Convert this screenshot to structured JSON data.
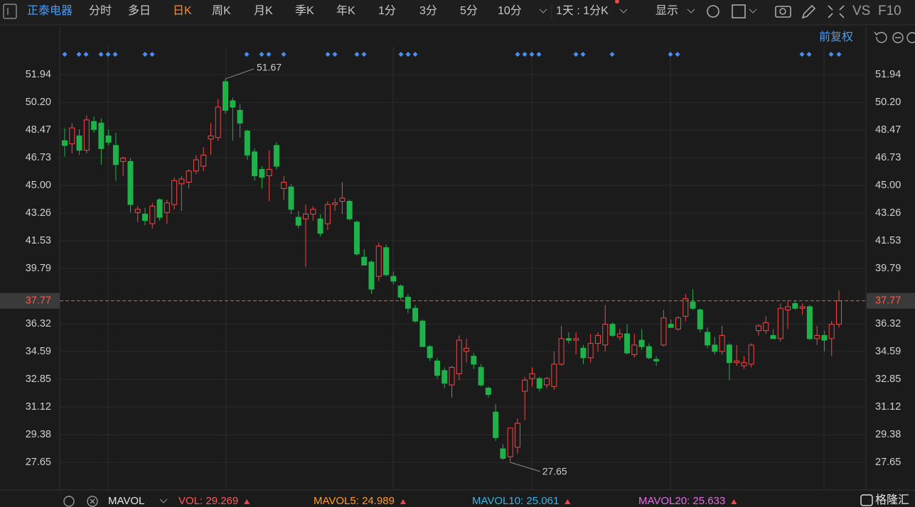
{
  "toolbar": {
    "stock": "正泰电器",
    "periods": [
      "分时",
      "多日",
      "日K",
      "周K",
      "月K",
      "季K",
      "年K",
      "1分",
      "3分",
      "5分",
      "10分"
    ],
    "period_select": "1天 : 1分K",
    "display": "显示",
    "vs": "VS",
    "f10": "F10",
    "adjust": "前复权"
  },
  "indicator_bar": {
    "name": "MAVOL",
    "items": [
      {
        "text": "VOL: 29.269",
        "color": "#ff5b5b"
      },
      {
        "text": "MAVOL5: 24.989",
        "color": "#ff9a2a"
      },
      {
        "text": "MAVOL10: 25.061",
        "color": "#3fb2e0"
      },
      {
        "text": "MAVOL20: 25.633",
        "color": "#e070e0"
      }
    ]
  },
  "watermark": "格隆汇",
  "chart_data": {
    "type": "candlestick",
    "up_color": "#f04848",
    "down_color": "#1fb24a",
    "grid": true,
    "ylim": [
      26.01,
      53.72
    ],
    "yticks": [
      51.94,
      {
        "value": 50.2,
        "label": "50.20"
      },
      48.47,
      46.73,
      {
        "value": 45,
        "label": "45.00"
      },
      43.26,
      41.53,
      39.79,
      36.32,
      34.59,
      32.85,
      31.12,
      29.38,
      27.65
    ],
    "open": [
      47.8,
      47.6,
      48.1,
      47.2,
      49.0,
      48.9,
      48.1,
      47.5,
      46.5,
      46.5,
      43.3,
      43.2,
      42.6,
      44.1,
      43.3,
      43.8,
      45.1,
      45.2,
      45.9,
      46.2,
      47.9,
      48.0,
      51.5,
      50.3,
      49.7,
      48.4,
      47.1,
      46.0,
      45.6,
      47.5,
      44.8,
      44.9,
      43.0,
      42.9,
      43.2,
      42.9,
      42.6,
      43.8,
      44.0,
      44.0,
      42.7,
      40.5,
      40.2,
      39.3,
      41.1,
      39.3,
      38.7,
      38.0,
      37.3,
      36.5,
      34.9,
      34.0,
      33.4,
      32.5,
      33.2,
      34.6,
      34.3,
      33.6,
      32.3,
      30.8,
      28.5,
      28.0,
      28.6,
      32.1,
      32.9,
      32.9,
      32.5,
      32.4,
      33.8,
      35.4,
      35.3,
      34.8,
      34.2,
      35.1,
      35.0,
      36.3,
      35.5,
      35.7,
      34.4,
      35.3,
      34.9,
      34.1,
      35.0,
      36.3,
      36.0,
      36.8,
      37.7,
      37.2,
      35.8,
      35.0,
      34.6,
      35.0,
      33.9,
      33.7,
      33.8,
      35.9,
      35.9,
      35.6,
      35.4,
      37.2,
      37.6,
      37.3,
      37.4,
      35.4,
      35.6,
      35.4,
      36.3
    ],
    "high": [
      48.6,
      48.9,
      48.5,
      49.4,
      49.3,
      49.2,
      48.5,
      48.3,
      46.8,
      46.7,
      43.7,
      43.6,
      43.9,
      44.2,
      44.1,
      45.5,
      45.6,
      46.0,
      46.9,
      47.4,
      48.9,
      50.4,
      51.67,
      50.5,
      50.1,
      48.5,
      47.3,
      46.2,
      47.2,
      47.7,
      45.6,
      45.1,
      43.4,
      43.8,
      43.7,
      43.2,
      44.0,
      44.2,
      45.2,
      44.1,
      42.8,
      41.0,
      40.3,
      41.4,
      41.3,
      39.6,
      38.8,
      38.2,
      37.5,
      36.6,
      35.0,
      34.2,
      33.6,
      33.7,
      35.6,
      35.4,
      34.5,
      33.8,
      32.4,
      31.3,
      28.8,
      29.8,
      30.4,
      33.0,
      33.6,
      33.0,
      33.0,
      34.6,
      36.2,
      35.8,
      35.8,
      35.0,
      35.7,
      35.8,
      37.5,
      36.4,
      36.0,
      36.3,
      35.7,
      36.0,
      35.1,
      34.3,
      37.2,
      36.6,
      36.8,
      38.2,
      38.5,
      37.3,
      36.1,
      35.5,
      36.2,
      35.1,
      35.0,
      34.3,
      35.1,
      36.3,
      36.8,
      36.0,
      37.6,
      37.8,
      37.8,
      37.6,
      37.5,
      36.2,
      35.9,
      36.5,
      38.4
    ],
    "low": [
      46.8,
      47.0,
      46.9,
      47.0,
      48.3,
      46.3,
      47.5,
      45.3,
      45.6,
      43.3,
      42.7,
      42.5,
      42.3,
      42.8,
      42.6,
      43.5,
      43.4,
      44.8,
      45.7,
      45.9,
      46.9,
      47.8,
      49.5,
      47.8,
      48.0,
      46.6,
      45.3,
      44.8,
      44.0,
      46.0,
      44.1,
      43.2,
      42.3,
      39.9,
      42.8,
      41.8,
      42.2,
      43.4,
      43.2,
      42.8,
      40.6,
      40.0,
      38.2,
      39.0,
      39.3,
      38.8,
      37.8,
      37.0,
      36.4,
      34.9,
      34.0,
      32.9,
      32.3,
      31.7,
      32.8,
      33.9,
      33.5,
      32.4,
      31.7,
      29.0,
      27.8,
      27.65,
      28.2,
      30.3,
      32.4,
      32.1,
      32.3,
      32.2,
      33.7,
      35.1,
      34.4,
      33.8,
      33.9,
      34.6,
      34.6,
      35.5,
      35.3,
      34.4,
      34.2,
      34.7,
      34.1,
      33.7,
      34.9,
      36.1,
      35.9,
      36.5,
      37.2,
      35.8,
      34.8,
      34.4,
      34.4,
      32.8,
      33.7,
      33.5,
      33.6,
      35.6,
      35.7,
      35.4,
      35.2,
      36.0,
      37.2,
      36.9,
      35.3,
      35.0,
      34.6,
      34.3,
      36.1
    ],
    "close": [
      47.5,
      48.6,
      47.2,
      49.1,
      48.5,
      47.3,
      47.7,
      46.3,
      46.7,
      43.8,
      43.5,
      42.8,
      43.7,
      43.0,
      43.9,
      45.3,
      45.4,
      45.9,
      46.6,
      46.9,
      48.1,
      49.9,
      49.7,
      49.9,
      48.9,
      46.9,
      45.6,
      45.5,
      46.0,
      46.2,
      45.2,
      43.5,
      42.5,
      43.2,
      43.5,
      42.0,
      43.8,
      43.9,
      44.2,
      42.9,
      40.7,
      40.0,
      38.5,
      41.2,
      39.4,
      39.0,
      38.0,
      37.3,
      36.5,
      34.9,
      34.2,
      33.1,
      32.6,
      33.6,
      35.3,
      34.8,
      33.8,
      32.5,
      31.9,
      29.2,
      27.9,
      29.8,
      30.1,
      32.8,
      33.2,
      32.3,
      32.9,
      33.8,
      35.4,
      35.3,
      35.4,
      34.2,
      35.1,
      35.6,
      36.3,
      35.6,
      35.7,
      34.5,
      35.0,
      34.9,
      34.2,
      34.0,
      36.7,
      36.1,
      36.7,
      37.9,
      37.3,
      36.0,
      35.0,
      34.6,
      35.6,
      33.9,
      34.0,
      33.9,
      35.0,
      36.2,
      36.4,
      35.4,
      37.3,
      37.4,
      37.3,
      37.4,
      35.4,
      35.6,
      35.3,
      36.3,
      37.77
    ]
  }
}
